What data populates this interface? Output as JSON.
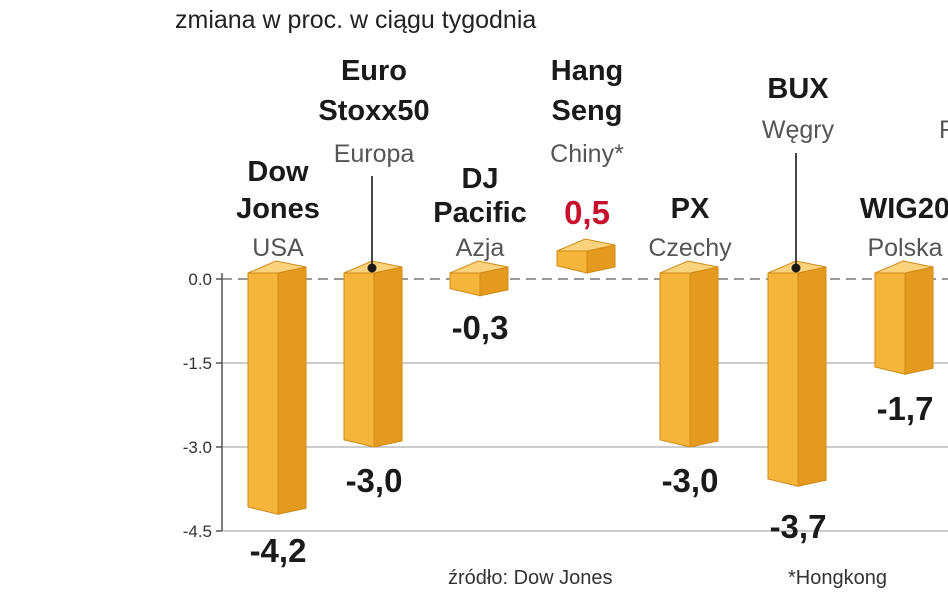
{
  "subtitle": "zmiana w proc. w ciągu tygodnia",
  "source": "źródło: Dow Jones",
  "footnote": "*Hongkong",
  "colors": {
    "bar_front": "#f5b43a",
    "bar_side": "#e39a1e",
    "bar_top": "#fbd37c",
    "positive_value": "#c8102e",
    "grid": "#9a9a9a"
  },
  "chart_data": {
    "type": "bar",
    "subtitle": "zmiana w proc. w ciągu tygodnia",
    "ylim": [
      -4.5,
      0.0
    ],
    "yticks": [
      "0.0",
      "-1.5",
      "-3.0",
      "-4.5"
    ],
    "grid": true,
    "bars": [
      {
        "name": "Dow Jones",
        "region": "USA",
        "value": -4.2,
        "label": "-4,2"
      },
      {
        "name": "Euro Stoxx50",
        "region": "Europa",
        "value": -3.0,
        "label": "-3,0"
      },
      {
        "name": "DJ Pacific",
        "region": "Azja",
        "value": -0.3,
        "label": "-0,3"
      },
      {
        "name": "Hang Seng",
        "region": "Chiny*",
        "value": 0.5,
        "label": "0,5"
      },
      {
        "name": "PX",
        "region": "Czechy",
        "value": -3.0,
        "label": "-3,0"
      },
      {
        "name": "BUX",
        "region": "Węgry",
        "value": -3.7,
        "label": "-3,7"
      },
      {
        "name": "WIG20",
        "region": "Polska",
        "value": -1.7,
        "label": "-1,7"
      },
      {
        "name": "R",
        "region": "R",
        "value": 0.0,
        "label": ""
      }
    ]
  }
}
